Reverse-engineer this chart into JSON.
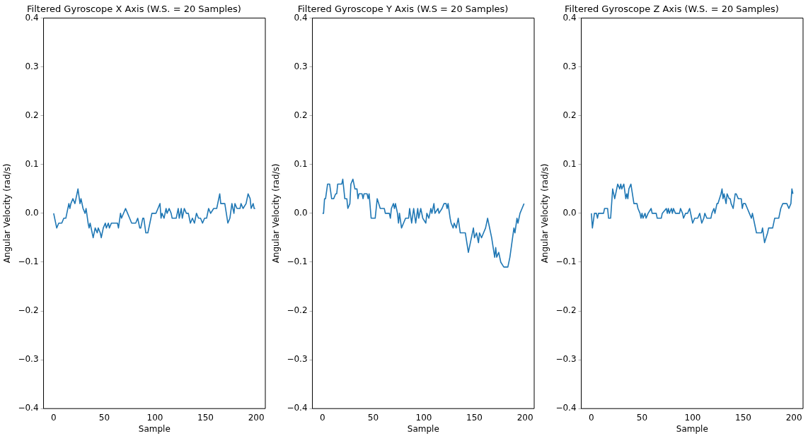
{
  "chart_data": [
    {
      "type": "line",
      "title": "Filtered Gyroscope X Axis (W.S. = 20 Samples)",
      "xlabel": "Sample",
      "ylabel": "Angular Velocity (rad/s)",
      "color": "#1f77b4",
      "grid": false,
      "legend": false,
      "marker": "none",
      "line_style": "solid",
      "x": [
        0,
        1,
        3,
        5,
        8,
        10,
        12,
        15,
        16,
        17,
        19,
        21,
        24,
        26,
        27,
        29,
        31,
        32,
        34,
        35,
        36,
        39,
        41,
        43,
        44,
        46,
        47,
        49,
        51,
        52,
        54,
        55,
        57,
        63,
        64,
        66,
        67,
        71,
        73,
        75,
        77,
        81,
        83,
        85,
        86,
        88,
        89,
        91,
        93,
        95,
        97,
        101,
        103,
        105,
        106,
        107,
        109,
        111,
        112,
        114,
        116,
        117,
        121,
        123,
        124,
        126,
        127,
        129,
        131,
        133,
        135,
        137,
        139,
        141,
        143,
        145,
        147,
        149,
        151,
        153,
        155,
        158,
        161,
        162,
        164,
        165,
        169,
        172,
        174,
        176,
        178,
        179,
        181,
        184,
        185,
        187,
        190,
        192,
        194,
        195,
        197,
        198,
        199
      ],
      "values": [
        0,
        -0.01,
        -0.03,
        -0.02,
        -0.02,
        -0.01,
        -0.01,
        0.02,
        0.01,
        0.02,
        0.03,
        0.02,
        0.05,
        0.02,
        0.03,
        0.01,
        0,
        0.01,
        -0.02,
        -0.03,
        -0.02,
        -0.05,
        -0.03,
        -0.04,
        -0.03,
        -0.04,
        -0.05,
        -0.03,
        -0.02,
        -0.03,
        -0.02,
        -0.03,
        -0.02,
        -0.02,
        -0.03,
        0,
        -0.01,
        0.01,
        0,
        -0.01,
        -0.02,
        -0.02,
        -0.01,
        -0.03,
        -0.03,
        -0.01,
        -0.01,
        -0.04,
        -0.04,
        -0.02,
        0,
        0,
        0.01,
        0.02,
        -0.01,
        0,
        -0.01,
        0.01,
        0,
        0.01,
        0,
        -0.01,
        -0.01,
        0.01,
        -0.01,
        0.01,
        -0.01,
        0.01,
        0,
        0,
        -0.02,
        -0.01,
        -0.02,
        0,
        -0.01,
        -0.01,
        -0.02,
        -0.01,
        -0.01,
        0.01,
        0,
        0.01,
        0.01,
        0.02,
        0.04,
        0.02,
        0.02,
        -0.02,
        -0.01,
        0.02,
        0,
        0.02,
        0.01,
        0.01,
        0.02,
        0.01,
        0.02,
        0.04,
        0.03,
        0.01,
        0.02,
        0.01,
        0.01
      ],
      "xlim": [
        -10,
        209
      ],
      "xticks": [
        0,
        50,
        100,
        150,
        200
      ],
      "ylim": [
        -0.4,
        0.4
      ],
      "yticks": [
        {
          "value": -0.4,
          "label": "−0.4"
        },
        {
          "value": -0.3,
          "label": "−0.3"
        },
        {
          "value": -0.2,
          "label": "−0.2"
        },
        {
          "value": -0.1,
          "label": "−0.1"
        },
        {
          "value": 0,
          "label": "0.0"
        },
        0.1,
        0.2,
        0.3,
        0.4
      ]
    },
    {
      "type": "line",
      "title": "Filtered Gyroscope Y Axis (W.S = 20 Samples)",
      "xlabel": "Sample",
      "ylabel": "Angular Velocity (rad/s)",
      "color": "#1f77b4",
      "grid": false,
      "legend": false,
      "marker": "none",
      "line_style": "solid",
      "x": [
        0,
        1,
        2,
        3,
        5,
        7,
        9,
        11,
        13,
        14,
        15,
        19,
        20,
        22,
        24,
        25,
        27,
        28,
        30,
        32,
        34,
        35,
        36,
        39,
        40,
        41,
        44,
        45,
        46,
        48,
        52,
        54,
        57,
        61,
        62,
        66,
        67,
        68,
        70,
        71,
        72,
        74,
        75,
        76,
        78,
        80,
        82,
        85,
        86,
        88,
        90,
        92,
        94,
        95,
        97,
        99,
        102,
        103,
        105,
        107,
        108,
        110,
        111,
        114,
        115,
        118,
        120,
        122,
        123,
        124,
        126,
        127,
        129,
        130,
        132,
        134,
        136,
        137,
        141,
        144,
        146,
        149,
        150,
        152,
        154,
        155,
        157,
        159,
        161,
        163,
        164,
        167,
        170,
        171,
        172,
        174,
        176,
        179,
        183,
        185,
        187,
        189,
        190,
        192,
        193,
        195,
        197,
        199
      ],
      "values": [
        0,
        0,
        0.03,
        0.03,
        0.06,
        0.06,
        0.03,
        0.03,
        0.04,
        0.04,
        0.06,
        0.06,
        0.07,
        0.03,
        0.03,
        0.01,
        0.02,
        0.06,
        0.07,
        0.05,
        0.05,
        0.03,
        0.04,
        0.04,
        0.03,
        0.04,
        0.04,
        0.03,
        0.04,
        -0.01,
        -0.01,
        0.03,
        0.01,
        0.01,
        0,
        0,
        -0.01,
        0.01,
        0.02,
        0.01,
        0.02,
        0,
        -0.02,
        0,
        -0.03,
        -0.02,
        -0.01,
        -0.01,
        0.01,
        -0.02,
        0.01,
        -0.02,
        0.01,
        -0.01,
        0.01,
        -0.01,
        -0.02,
        0,
        -0.01,
        0.01,
        0,
        0.02,
        0,
        0.01,
        0,
        0.01,
        0.02,
        0.02,
        0.01,
        0.02,
        -0.01,
        -0.02,
        -0.03,
        -0.02,
        -0.03,
        -0.01,
        -0.04,
        -0.04,
        -0.04,
        -0.08,
        -0.06,
        -0.03,
        -0.05,
        -0.04,
        -0.06,
        -0.04,
        -0.05,
        -0.04,
        -0.03,
        -0.01,
        -0.02,
        -0.05,
        -0.09,
        -0.07,
        -0.09,
        -0.08,
        -0.1,
        -0.11,
        -0.11,
        -0.09,
        -0.06,
        -0.03,
        -0.04,
        -0.01,
        -0.02,
        0,
        0.01,
        0.02
      ],
      "xlim": [
        -10,
        209
      ],
      "xticks": [
        0,
        50,
        100,
        150,
        200
      ],
      "ylim": [
        -0.4,
        0.4
      ],
      "yticks": [
        {
          "value": -0.4,
          "label": "−0.4"
        },
        {
          "value": -0.3,
          "label": "−0.3"
        },
        {
          "value": -0.2,
          "label": "−0.2"
        },
        {
          "value": -0.1,
          "label": "−0.1"
        },
        {
          "value": 0,
          "label": "0.0"
        },
        0.1,
        0.2,
        0.3,
        0.4
      ]
    },
    {
      "type": "line",
      "title": "Filtered Gyroscope Z Axis (W.S. = 20 Samples)",
      "xlabel": "Sample",
      "ylabel": "Angular Velocity (rad/s)",
      "color": "#1f77b4",
      "grid": false,
      "legend": false,
      "marker": "none",
      "line_style": "solid",
      "x": [
        0,
        1,
        3,
        5,
        6,
        7,
        12,
        13,
        16,
        17,
        19,
        21,
        23,
        24,
        26,
        28,
        29,
        30,
        32,
        34,
        35,
        36,
        37,
        39,
        42,
        45,
        46,
        48,
        49,
        50,
        51,
        53,
        54,
        56,
        59,
        60,
        64,
        65,
        69,
        70,
        74,
        75,
        76,
        77,
        79,
        80,
        81,
        83,
        87,
        88,
        90,
        91,
        93,
        95,
        97,
        98,
        100,
        102,
        105,
        107,
        109,
        111,
        112,
        114,
        118,
        119,
        121,
        122,
        124,
        125,
        128,
        129,
        130,
        131,
        133,
        134,
        136,
        137,
        138,
        140,
        142,
        143,
        145,
        148,
        149,
        150,
        152,
        154,
        156,
        158,
        159,
        161,
        163,
        168,
        169,
        171,
        174,
        175,
        179,
        181,
        185,
        187,
        189,
        193,
        195,
        197,
        198,
        199
      ],
      "values": [
        0,
        -0.03,
        0,
        0,
        -0.01,
        0,
        0,
        0.01,
        0.01,
        -0.01,
        -0.01,
        0.05,
        0.03,
        0.04,
        0.06,
        0.05,
        0.06,
        0.05,
        0.06,
        0.03,
        0.04,
        0.03,
        0.05,
        0.06,
        0.02,
        0.02,
        0.01,
        0,
        -0.01,
        0,
        -0.01,
        0,
        -0.01,
        0,
        0.01,
        0,
        0,
        -0.01,
        -0.01,
        0,
        0.01,
        0,
        0.01,
        0,
        0.01,
        0,
        0.01,
        0,
        0,
        0.01,
        0,
        -0.01,
        0,
        0,
        0.01,
        0,
        -0.02,
        -0.01,
        -0.01,
        0,
        -0.02,
        -0.01,
        0,
        -0.01,
        -0.01,
        0,
        0.01,
        0,
        0.02,
        0.02,
        0.04,
        0.05,
        0.03,
        0.04,
        0.02,
        0.04,
        0.03,
        0.03,
        0.02,
        0.01,
        0.04,
        0.04,
        0.03,
        0.03,
        0.01,
        0.02,
        0.02,
        0.01,
        0,
        -0.01,
        0,
        -0.02,
        -0.04,
        -0.04,
        -0.03,
        -0.06,
        -0.04,
        -0.03,
        -0.03,
        -0.01,
        -0.01,
        0.01,
        0.02,
        0.02,
        0.01,
        0.02,
        0.05,
        0.04
      ],
      "xlim": [
        -10,
        209
      ],
      "xticks": [
        0,
        50,
        100,
        150,
        200
      ],
      "ylim": [
        -0.4,
        0.4
      ],
      "yticks": [
        {
          "value": -0.4,
          "label": "−0.4"
        },
        {
          "value": -0.3,
          "label": "−0.3"
        },
        {
          "value": -0.2,
          "label": "−0.2"
        },
        {
          "value": -0.1,
          "label": "−0.1"
        },
        {
          "value": 0,
          "label": "0.0"
        },
        0.1,
        0.2,
        0.3,
        0.4
      ]
    }
  ]
}
